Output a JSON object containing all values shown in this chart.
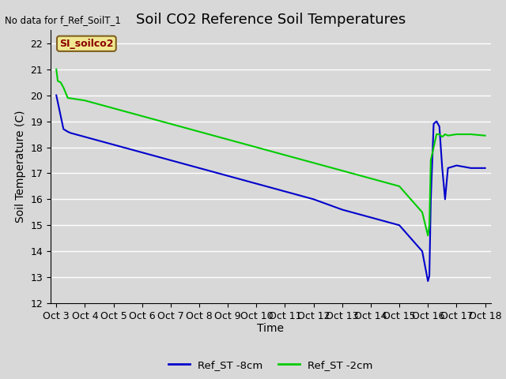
{
  "title": "Soil CO2 Reference Soil Temperatures",
  "xlabel": "Time",
  "ylabel": "Soil Temperature (C)",
  "no_data_text": "No data for f_Ref_SoilT_1",
  "site_label": "SI_soilco2",
  "ylim": [
    12.0,
    22.5
  ],
  "yticks": [
    12.0,
    13.0,
    14.0,
    15.0,
    16.0,
    17.0,
    18.0,
    19.0,
    20.0,
    21.0,
    22.0
  ],
  "x_tick_labels": [
    "Oct 3",
    "Oct 4",
    "Oct 5",
    "Oct 6",
    "Oct 7",
    "Oct 8",
    "Oct 9",
    "Oct 10",
    "Oct 11",
    "Oct 12",
    "Oct 13",
    "Oct 14",
    "Oct 15",
    "Oct 16",
    "Oct 17",
    "Oct 18"
  ],
  "ref_st_8cm_x": [
    0,
    0.25,
    0.4,
    0.5,
    1.0,
    2.0,
    3.0,
    4.0,
    5.0,
    6.0,
    7.0,
    8.0,
    9.0,
    10.0,
    11.0,
    12.0,
    12.8,
    13.0,
    13.05,
    13.1,
    13.2,
    13.3,
    13.4,
    13.5,
    13.6,
    13.7,
    14.0,
    14.5,
    15.0
  ],
  "ref_st_8cm_y": [
    20.0,
    18.7,
    18.6,
    18.55,
    18.4,
    18.1,
    17.8,
    17.5,
    17.2,
    16.9,
    16.6,
    16.3,
    16.0,
    15.6,
    15.3,
    15.0,
    14.0,
    12.85,
    13.05,
    15.95,
    18.9,
    19.0,
    18.8,
    17.2,
    16.0,
    17.2,
    17.3,
    17.2,
    17.2
  ],
  "ref_st_2cm_x": [
    0,
    0.05,
    0.15,
    0.25,
    0.4,
    1.0,
    2.0,
    3.0,
    4.0,
    5.0,
    6.0,
    7.0,
    8.0,
    9.0,
    10.0,
    11.0,
    12.0,
    12.8,
    13.0,
    13.05,
    13.1,
    13.2,
    13.3,
    13.4,
    13.5,
    13.6,
    13.7,
    14.0,
    14.5,
    15.0
  ],
  "ref_st_2cm_y": [
    21.0,
    20.55,
    20.5,
    20.3,
    19.9,
    19.8,
    19.5,
    19.2,
    18.9,
    18.6,
    18.3,
    18.0,
    17.7,
    17.4,
    17.1,
    16.8,
    16.5,
    15.5,
    14.6,
    15.0,
    17.5,
    18.0,
    18.5,
    18.5,
    18.4,
    18.5,
    18.45,
    18.5,
    18.5,
    18.45
  ],
  "line_color_8cm": "#0000cc",
  "line_color_2cm": "#00cc00",
  "bg_color": "#d8d8d8",
  "plot_bg_color": "#d8d8d8",
  "grid_color": "#ffffff",
  "title_fontsize": 13,
  "axis_label_fontsize": 10,
  "tick_fontsize": 9
}
